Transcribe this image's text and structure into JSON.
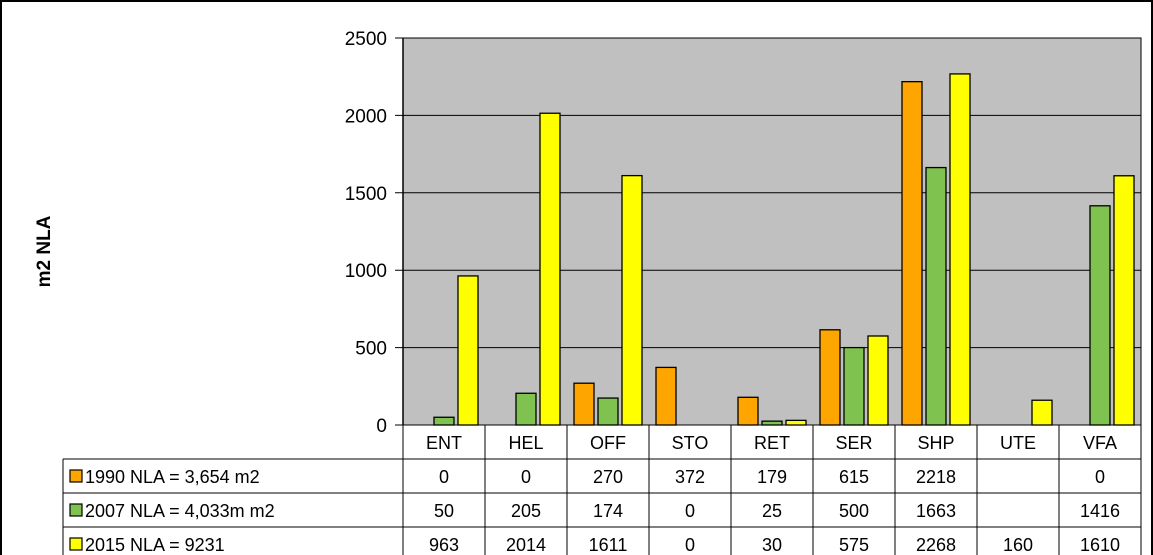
{
  "chart_data": {
    "type": "bar",
    "title": "",
    "xlabel": "",
    "ylabel": "m2 NLA",
    "ylim": [
      0,
      2500
    ],
    "yticks": [
      0,
      500,
      1000,
      1500,
      2000,
      2500
    ],
    "grid": true,
    "legend": "data-table",
    "plot_background": "#c0c0c0",
    "categories": [
      "ENT",
      "HEL",
      "OFF",
      "STO",
      "RET",
      "SER",
      "SHP",
      "UTE",
      "VFA"
    ],
    "series": [
      {
        "name": "1990 NLA = 3,654 m2",
        "color": "#ffa500",
        "values": [
          0,
          0,
          270,
          372,
          179,
          615,
          2218,
          null,
          0
        ],
        "table": [
          "0",
          "0",
          "270",
          "372",
          "179",
          "615",
          "2218",
          "",
          "0"
        ]
      },
      {
        "name": "2007 NLA = 4,033m m2",
        "color": "#7fc24f",
        "values": [
          50,
          205,
          174,
          0,
          25,
          500,
          1663,
          null,
          1416
        ],
        "table": [
          "50",
          "205",
          "174",
          "0",
          "25",
          "500",
          "1663",
          "",
          "1416"
        ]
      },
      {
        "name": "2015 NLA = 9231",
        "color": "#ffff00",
        "values": [
          963,
          2014,
          1611,
          0,
          30,
          575,
          2268,
          160,
          1610
        ],
        "table": [
          "963",
          "2014",
          "1611",
          "0",
          "30",
          "575",
          "2268",
          "160",
          "1610"
        ]
      }
    ]
  }
}
